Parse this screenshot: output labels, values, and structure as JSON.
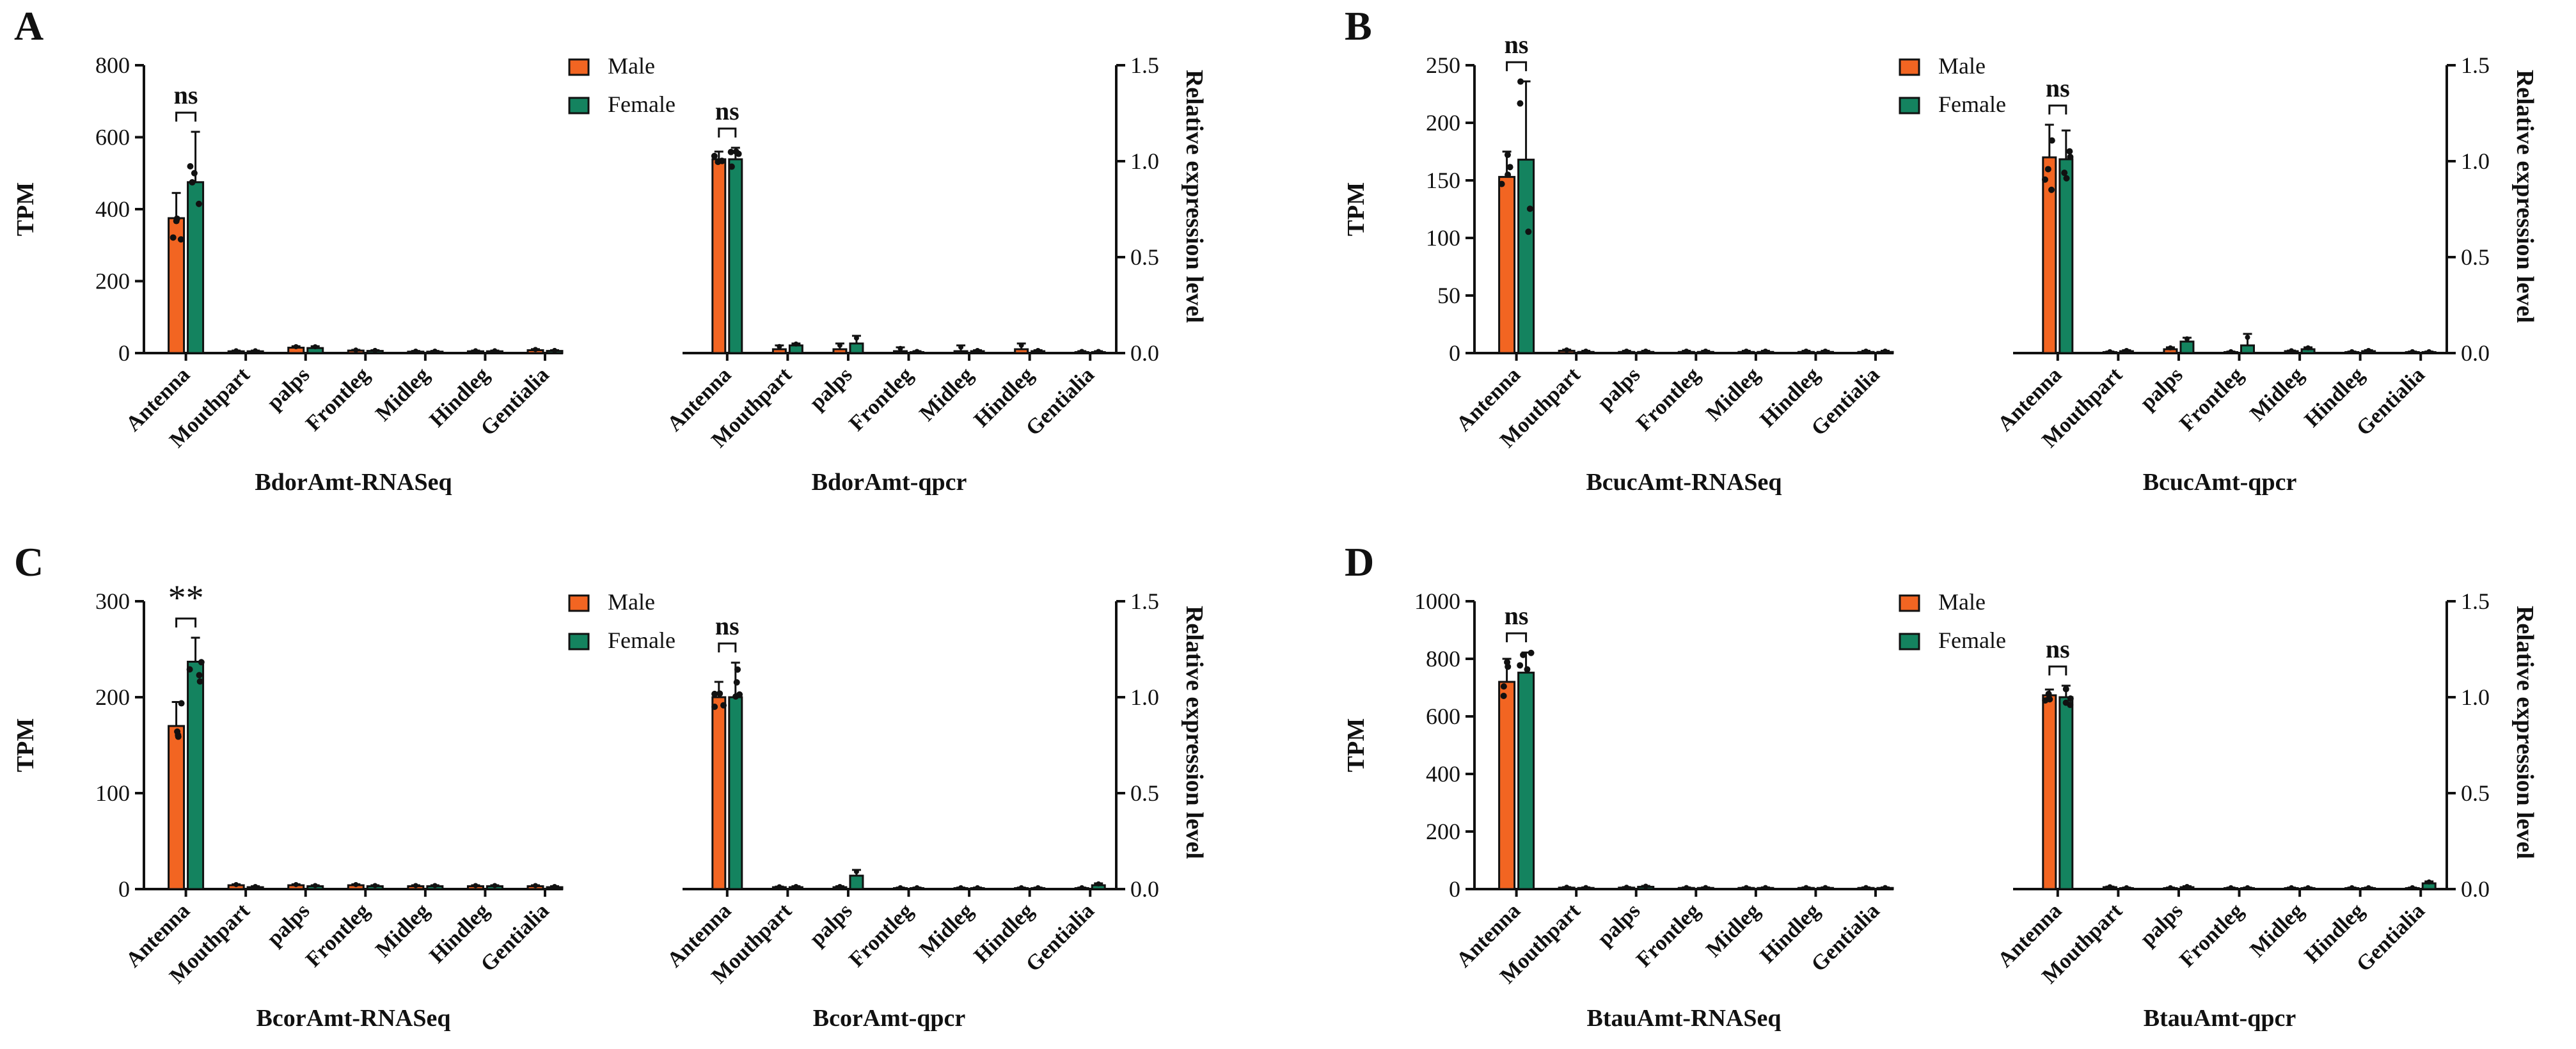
{
  "colors": {
    "male": "#f26522",
    "female": "#14835f",
    "ink": "#111111"
  },
  "legend": {
    "male": "Male",
    "female": "Female"
  },
  "categories": [
    "Antenna",
    "Mouthpart",
    "palps",
    "Frontleg",
    "Midleg",
    "Hindleg",
    "Gentialia"
  ],
  "panels": [
    {
      "letter": "A"
    },
    {
      "letter": "B"
    },
    {
      "letter": "C"
    },
    {
      "letter": "D"
    }
  ],
  "chart_data": [
    {
      "id": "A-rnaseq",
      "type": "bar",
      "title": "BdorAmt-RNASeq",
      "ylabel": "TPM",
      "ylim": [
        0,
        800
      ],
      "ticks": [
        0,
        200,
        400,
        600,
        800
      ],
      "categories": [
        "Antenna",
        "Mouthpart",
        "palps",
        "Frontleg",
        "Midleg",
        "Hindleg",
        "Gentialia"
      ],
      "series": [
        {
          "name": "Male",
          "values": [
            375,
            5,
            15,
            7,
            4,
            5,
            8
          ],
          "errors": [
            70,
            2,
            4,
            2,
            2,
            2,
            3
          ]
        },
        {
          "name": "Female",
          "values": [
            475,
            5,
            14,
            6,
            4,
            5,
            6
          ],
          "errors": [
            140,
            2,
            5,
            2,
            2,
            2,
            2
          ]
        }
      ],
      "significance": "ns"
    },
    {
      "id": "A-qpcr",
      "type": "bar",
      "title": "BdorAmt-qpcr",
      "ylabel": "Relative expression level",
      "ylim": [
        0,
        1.5
      ],
      "ticks": [
        "0.0",
        "0.5",
        "1.0",
        "1.5"
      ],
      "categories": [
        "Antenna",
        "Mouthpart",
        "palps",
        "Frontleg",
        "Midleg",
        "Hindleg",
        "Gentialia"
      ],
      "series": [
        {
          "name": "Male",
          "values": [
            1.01,
            0.02,
            0.02,
            0.01,
            0.01,
            0.02,
            0.005
          ],
          "errors": [
            0.04,
            0.02,
            0.03,
            0.02,
            0.03,
            0.03,
            0.005
          ]
        },
        {
          "name": "Female",
          "values": [
            1.01,
            0.04,
            0.05,
            0.005,
            0.01,
            0.01,
            0.005
          ],
          "errors": [
            0.06,
            0.01,
            0.04,
            0.005,
            0.005,
            0.005,
            0.005
          ]
        }
      ],
      "significance": "ns"
    },
    {
      "id": "B-rnaseq",
      "type": "bar",
      "title": "BcucAmt-RNASeq",
      "ylabel": "TPM",
      "ylim": [
        0,
        250
      ],
      "ticks": [
        0,
        50,
        100,
        150,
        200,
        250
      ],
      "categories": [
        "Antenna",
        "Mouthpart",
        "palps",
        "Frontleg",
        "Midleg",
        "Hindleg",
        "Gentialia"
      ],
      "series": [
        {
          "name": "Male",
          "values": [
            153,
            2,
            1,
            1,
            1,
            1,
            1
          ],
          "errors": [
            22,
            1,
            1,
            1,
            1,
            1,
            1
          ]
        },
        {
          "name": "Female",
          "values": [
            168,
            1,
            1,
            1,
            1,
            1,
            1
          ],
          "errors": [
            68,
            1,
            1,
            1,
            1,
            1,
            1
          ]
        }
      ],
      "significance": "ns"
    },
    {
      "id": "B-qpcr",
      "type": "bar",
      "title": "BcucAmt-qpcr",
      "ylabel": "Relative expression level",
      "ylim": [
        0,
        1.5
      ],
      "ticks": [
        "0.0",
        "0.5",
        "1.0",
        "1.5"
      ],
      "categories": [
        "Antenna",
        "Mouthpart",
        "palps",
        "Frontleg",
        "Midleg",
        "Hindleg",
        "Gentialia"
      ],
      "series": [
        {
          "name": "Male",
          "values": [
            1.02,
            0.005,
            0.02,
            0.005,
            0.01,
            0.005,
            0.005
          ],
          "errors": [
            0.17,
            0.003,
            0.01,
            0.003,
            0.003,
            0.003,
            0.003
          ]
        },
        {
          "name": "Female",
          "values": [
            1.01,
            0.01,
            0.06,
            0.04,
            0.02,
            0.01,
            0.005
          ],
          "errors": [
            0.15,
            0.005,
            0.02,
            0.06,
            0.01,
            0.005,
            0.003
          ]
        }
      ],
      "significance": "ns"
    },
    {
      "id": "C-rnaseq",
      "type": "bar",
      "title": "BcorAmt-RNASeq",
      "ylabel": "TPM",
      "ylim": [
        0,
        300
      ],
      "ticks": [
        0,
        100,
        200,
        300
      ],
      "categories": [
        "Antenna",
        "Mouthpart",
        "palps",
        "Frontleg",
        "Midleg",
        "Hindleg",
        "Gentialia"
      ],
      "series": [
        {
          "name": "Male",
          "values": [
            170,
            4,
            4,
            4,
            3,
            3,
            3
          ],
          "errors": [
            25,
            1,
            1,
            1,
            1,
            1,
            1
          ]
        },
        {
          "name": "Female",
          "values": [
            237,
            2,
            3,
            3,
            3,
            3,
            2
          ],
          "errors": [
            25,
            1,
            1,
            1,
            1,
            1,
            1
          ]
        }
      ],
      "significance": "**"
    },
    {
      "id": "C-qpcr",
      "type": "bar",
      "title": "BcorAmt-qpcr",
      "ylabel": "Relative expression level",
      "ylim": [
        0,
        1.5
      ],
      "ticks": [
        "0.0",
        "0.5",
        "1.0",
        "1.5"
      ],
      "categories": [
        "Antenna",
        "Mouthpart",
        "palps",
        "Frontleg",
        "Midleg",
        "Hindleg",
        "Gentialia"
      ],
      "series": [
        {
          "name": "Male",
          "values": [
            1.0,
            0.01,
            0.01,
            0.005,
            0.005,
            0.005,
            0.005
          ],
          "errors": [
            0.08,
            0.003,
            0.005,
            0.003,
            0.003,
            0.003,
            0.003
          ]
        },
        {
          "name": "Female",
          "values": [
            1.0,
            0.01,
            0.07,
            0.005,
            0.005,
            0.005,
            0.02
          ],
          "errors": [
            0.18,
            0.005,
            0.03,
            0.003,
            0.003,
            0.003,
            0.01
          ]
        }
      ],
      "significance": "ns"
    },
    {
      "id": "D-rnaseq",
      "type": "bar",
      "title": "BtauAmt-RNASeq",
      "ylabel": "TPM",
      "ylim": [
        0,
        1000
      ],
      "ticks": [
        0,
        200,
        400,
        600,
        800,
        1000
      ],
      "categories": [
        "Antenna",
        "Mouthpart",
        "palps",
        "Frontleg",
        "Midleg",
        "Hindleg",
        "Gentialia"
      ],
      "series": [
        {
          "name": "Male",
          "values": [
            720,
            5,
            5,
            4,
            4,
            4,
            4
          ],
          "errors": [
            80,
            2,
            2,
            2,
            2,
            2,
            2
          ]
        },
        {
          "name": "Female",
          "values": [
            752,
            4,
            8,
            4,
            4,
            4,
            4
          ],
          "errors": [
            70,
            2,
            3,
            2,
            2,
            2,
            2
          ]
        }
      ],
      "significance": "ns"
    },
    {
      "id": "D-qpcr",
      "type": "bar",
      "title": "BtauAmt-qpcr",
      "ylabel": "Relative expression level",
      "ylim": [
        0,
        1.5
      ],
      "ticks": [
        "0.0",
        "0.5",
        "1.0",
        "1.5"
      ],
      "categories": [
        "Antenna",
        "Mouthpart",
        "palps",
        "Frontleg",
        "Midleg",
        "Hindleg",
        "Gentialia"
      ],
      "series": [
        {
          "name": "Male",
          "values": [
            1.01,
            0.01,
            0.005,
            0.005,
            0.005,
            0.005,
            0.005
          ],
          "errors": [
            0.03,
            0.003,
            0.003,
            0.003,
            0.003,
            0.003,
            0.003
          ]
        },
        {
          "name": "Female",
          "values": [
            1.0,
            0.005,
            0.01,
            0.005,
            0.005,
            0.005,
            0.03
          ],
          "errors": [
            0.06,
            0.003,
            0.005,
            0.003,
            0.003,
            0.003,
            0.01
          ]
        }
      ],
      "significance": "ns"
    }
  ]
}
